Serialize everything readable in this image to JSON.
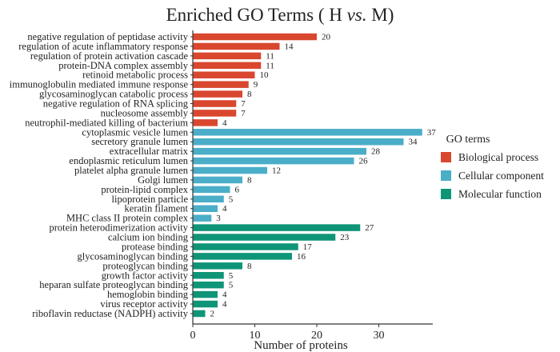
{
  "chart_data": {
    "type": "bar",
    "orientation": "horizontal",
    "title_main": "Enriched GO Terms ( H ",
    "title_italic": "vs.",
    "title_end": " M)",
    "xlabel": "Number of proteins",
    "xlim": [
      0,
      38.7
    ],
    "xticks": [
      "0",
      "10",
      "20",
      "30"
    ],
    "xtick_values": [
      0,
      10,
      20,
      30
    ],
    "legend": {
      "title": "GO terms",
      "placement": "right",
      "entries": [
        {
          "name": "Biological process",
          "color": "#d9472f"
        },
        {
          "name": "Cellular component",
          "color": "#4aaec8"
        },
        {
          "name": "Molecular function",
          "color": "#0e9578"
        }
      ]
    },
    "categories": [
      "negative regulation of peptidase activity",
      "regulation of acute inflammatory response",
      "regulation of protein activation cascade",
      "protein-DNA complex assembly",
      "retinoid metabolic process",
      "immunoglobulin mediated immune response",
      "glycosaminoglycan catabolic process",
      "negative regulation of RNA splicing",
      "nucleosome assembly",
      "neutrophil-mediated killing of bacterium",
      "cytoplasmic vesicle lumen",
      "secretory granule lumen",
      "extracellular matrix",
      "endoplasmic reticulum lumen",
      "platelet alpha granule lumen",
      "Golgi lumen",
      "protein-lipid complex",
      "lipoprotein particle",
      "keratin filament",
      "MHC class II protein complex",
      "protein heterodimerization activity",
      "calcium ion binding",
      "protease binding",
      "glycosaminoglycan binding",
      "proteoglycan binding",
      "growth factor activity",
      "heparan sulfate proteoglycan binding",
      "hemoglobin binding",
      "virus receptor activity",
      "riboflavin reductase (NADPH) activity"
    ],
    "values": [
      20,
      14,
      11,
      11,
      10,
      9,
      8,
      7,
      7,
      4,
      37,
      34,
      28,
      26,
      12,
      8,
      6,
      5,
      4,
      3,
      27,
      23,
      17,
      16,
      8,
      5,
      5,
      4,
      4,
      2
    ],
    "groups": [
      0,
      0,
      0,
      0,
      0,
      0,
      0,
      0,
      0,
      0,
      1,
      1,
      1,
      1,
      1,
      1,
      1,
      1,
      1,
      1,
      2,
      2,
      2,
      2,
      2,
      2,
      2,
      2,
      2,
      2
    ]
  }
}
